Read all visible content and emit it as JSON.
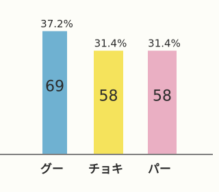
{
  "chart_data": {
    "type": "bar",
    "categories": [
      "グー",
      "チョキ",
      "パー"
    ],
    "values": [
      69,
      58,
      58
    ],
    "colors": [
      "#5fa9cc",
      "#f4e04a",
      "#e8a6bd"
    ],
    "percents": [
      {
        "value": 37.2,
        "label": "37.2%"
      },
      {
        "value": 31.4,
        "label": "31.4%"
      },
      {
        "value": 31.4,
        "label": "31.4%"
      }
    ]
  }
}
